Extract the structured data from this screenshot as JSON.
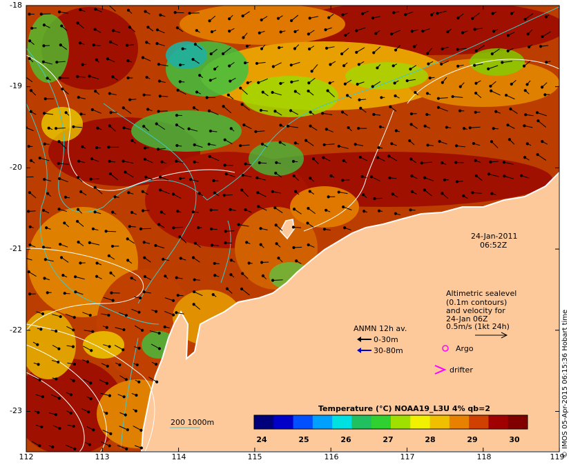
{
  "datetime": {
    "date": "24-Jan-2011",
    "time": "06:52Z"
  },
  "altimetry_note": [
    "Altimetric sealevel",
    "(0.1m contours)",
    "and velocity for",
    "24-Jan 06Z",
    "0.5m/s (1kt 24h)"
  ],
  "anmn": {
    "title": "ANMN 12h av.",
    "shallow": "0-30m",
    "deep": "30-80m",
    "shallow_color": "#000000",
    "deep_color": "#0000cc"
  },
  "markers": {
    "argo": "Argo",
    "drifter": "drifter",
    "argo_color": "#ff00ff",
    "drifter_color": "#ff00ff"
  },
  "isobaths": {
    "label": "200  1000m",
    "color": "#40c8c8"
  },
  "colorbar": {
    "title": "Temperature (°C) NOAA19_L3U 4% qb=2",
    "ticks": [
      "24",
      "25",
      "26",
      "27",
      "28",
      "29",
      "30"
    ],
    "colors": [
      "#00007a",
      "#0000c8",
      "#0050ff",
      "#00a0ff",
      "#00e0e0",
      "#20c060",
      "#30d030",
      "#a0e000",
      "#f0f000",
      "#f0c000",
      "#e88000",
      "#d04000",
      "#a00000",
      "#800000"
    ]
  },
  "axes": {
    "x_ticks": [
      "112",
      "113",
      "114",
      "115",
      "116",
      "117",
      "118",
      "119"
    ],
    "y_ticks": [
      "-18",
      "-19",
      "-20",
      "-21",
      "-22",
      "-23"
    ]
  },
  "credit": "© IMOS 05-Apr-2015 06:15:36 Hobart time",
  "colors": {
    "land": "#fdc89a",
    "ocean_warm": "#a01800",
    "ocean_mid": "#e08000",
    "ocean_cool": "#40c040",
    "sealevel_contour": "#ffffff"
  }
}
